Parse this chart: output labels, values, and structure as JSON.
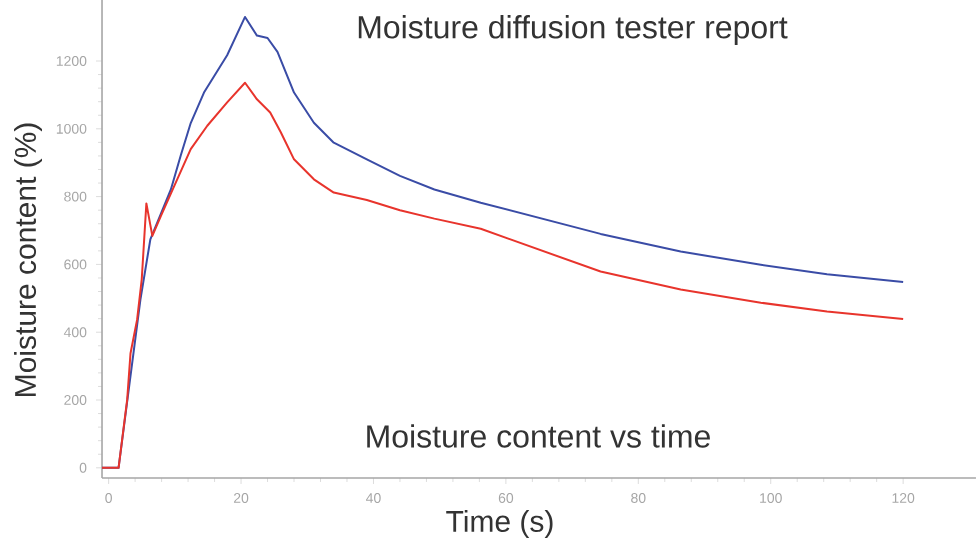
{
  "chart_data": {
    "type": "line",
    "title": "Moisture diffusion tester report",
    "subtitle": "Moisture content vs time",
    "xlabel": "Time (s)",
    "ylabel": "Moisture content (%)",
    "xlim": [
      -1,
      131
    ],
    "ylim": [
      -30,
      1380
    ],
    "xticks": [
      0,
      20,
      40,
      60,
      80,
      100,
      120
    ],
    "yticks": [
      0,
      200,
      400,
      600,
      800,
      1000,
      1200
    ],
    "series": [
      {
        "color": "#3a4ca6",
        "x": [
          -1,
          1.5,
          4.8,
          6.3,
          7.9,
          9.4,
          10.9,
          12.4,
          14.4,
          17.9,
          20.6,
          22.4,
          24,
          25.5,
          28,
          31,
          34,
          39,
          44,
          49.2,
          56.2,
          74.3,
          86.4,
          98.5,
          108.5,
          120
        ],
        "values": [
          0,
          0,
          496,
          674,
          750,
          821,
          922,
          1017,
          1107,
          1217,
          1330,
          1275,
          1268,
          1227,
          1107,
          1018,
          959,
          910,
          861,
          821,
          782,
          690,
          638,
          599,
          571,
          548
        ]
      },
      {
        "color": "#e8342c",
        "x": [
          -1,
          1.5,
          2.8,
          3.3,
          4.3,
          5.0,
          5.7,
          6.6,
          7.9,
          9.9,
          12.4,
          14.9,
          17.9,
          20.6,
          22.4,
          24.4,
          26,
          28,
          31,
          34,
          39,
          44,
          49.2,
          56.2,
          74.3,
          86.4,
          98.5,
          108.5,
          120
        ],
        "values": [
          0,
          0,
          201,
          337,
          437,
          556,
          780,
          684,
          743,
          831,
          940,
          1009,
          1078,
          1136,
          1087,
          1048,
          990,
          910,
          851,
          812,
          790,
          760,
          735,
          705,
          579,
          526,
          487,
          461,
          439
        ]
      }
    ]
  }
}
